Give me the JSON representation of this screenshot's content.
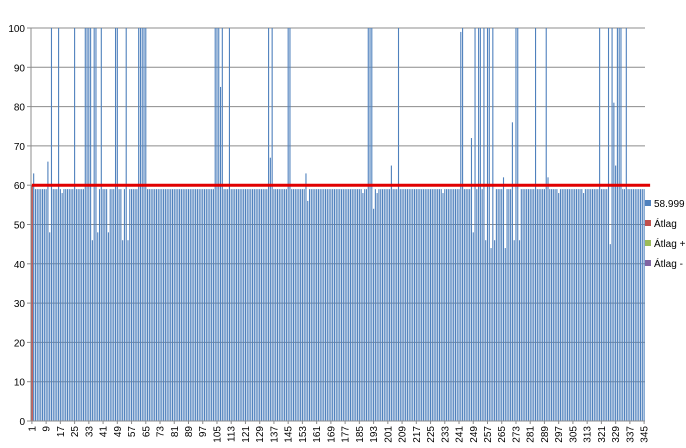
{
  "chart_data": {
    "type": "bar",
    "title": "",
    "xlabel": "",
    "ylabel": "",
    "bar_count": 345,
    "ylim": [
      0,
      100
    ],
    "y_ticks": [
      0,
      10,
      20,
      30,
      40,
      50,
      60,
      70,
      80,
      90,
      100
    ],
    "x_tick_labels": [
      "1",
      "9",
      "17",
      "25",
      "33",
      "41",
      "49",
      "57",
      "65",
      "73",
      "81",
      "89",
      "97",
      "105",
      "113",
      "121",
      "129",
      "137",
      "145",
      "153",
      "161",
      "169",
      "177",
      "185",
      "193",
      "201",
      "209",
      "217",
      "225",
      "233",
      "241",
      "249",
      "257",
      "265",
      "273",
      "281",
      "289",
      "297",
      "305",
      "313",
      "321",
      "329",
      "337",
      "345"
    ],
    "grid": true,
    "legend_position": "right",
    "baseline_value": 59,
    "bar_value_overrides": [
      [
        1,
        0
      ],
      [
        2,
        63
      ],
      [
        10,
        66
      ],
      [
        11,
        48
      ],
      [
        12,
        100
      ],
      [
        16,
        100
      ],
      [
        17,
        59
      ],
      [
        18,
        58
      ],
      [
        25,
        100
      ],
      [
        31,
        100
      ],
      [
        32,
        100
      ],
      [
        33,
        100
      ],
      [
        34,
        100
      ],
      [
        35,
        46
      ],
      [
        36,
        100
      ],
      [
        37,
        100
      ],
      [
        38,
        48
      ],
      [
        40,
        100
      ],
      [
        44,
        48
      ],
      [
        48,
        100
      ],
      [
        49,
        100
      ],
      [
        52,
        46
      ],
      [
        54,
        100
      ],
      [
        55,
        46
      ],
      [
        61,
        100
      ],
      [
        62,
        100
      ],
      [
        63,
        100
      ],
      [
        64,
        100
      ],
      [
        65,
        100
      ],
      [
        104,
        100
      ],
      [
        105,
        100
      ],
      [
        106,
        100
      ],
      [
        107,
        85
      ],
      [
        108,
        100
      ],
      [
        112,
        100
      ],
      [
        134,
        100
      ],
      [
        135,
        67
      ],
      [
        136,
        100
      ],
      [
        145,
        100
      ],
      [
        146,
        100
      ],
      [
        155,
        63
      ],
      [
        156,
        56
      ],
      [
        187,
        58
      ],
      [
        190,
        100
      ],
      [
        191,
        100
      ],
      [
        192,
        100
      ],
      [
        193,
        54
      ],
      [
        195,
        58
      ],
      [
        203,
        65
      ],
      [
        207,
        100
      ],
      [
        232,
        58
      ],
      [
        242,
        99
      ],
      [
        243,
        100
      ],
      [
        248,
        72
      ],
      [
        249,
        48
      ],
      [
        250,
        100
      ],
      [
        252,
        100
      ],
      [
        253,
        100
      ],
      [
        255,
        100
      ],
      [
        256,
        46
      ],
      [
        257,
        100
      ],
      [
        258,
        100
      ],
      [
        259,
        44
      ],
      [
        260,
        100
      ],
      [
        261,
        46
      ],
      [
        266,
        62
      ],
      [
        267,
        44
      ],
      [
        271,
        76
      ],
      [
        272,
        46
      ],
      [
        273,
        100
      ],
      [
        274,
        100
      ],
      [
        275,
        46
      ],
      [
        284,
        100
      ],
      [
        290,
        100
      ],
      [
        291,
        62
      ],
      [
        297,
        58
      ],
      [
        311,
        58
      ],
      [
        320,
        100
      ],
      [
        325,
        100
      ],
      [
        326,
        45
      ],
      [
        327,
        100
      ],
      [
        328,
        81
      ],
      [
        329,
        65
      ],
      [
        330,
        100
      ],
      [
        331,
        100
      ],
      [
        332,
        100
      ],
      [
        335,
        100
      ],
      [
        338,
        59
      ]
    ],
    "series": [
      {
        "name": "58.999",
        "color": "#4f81bd",
        "kind": "bar"
      },
      {
        "name": "Átlag",
        "color": "#c0504d",
        "kind": "line",
        "value": 60
      },
      {
        "name": "Átlag +",
        "color": "#9bbb59",
        "kind": "line"
      },
      {
        "name": "Átlag - ",
        "color": "#8064a2",
        "kind": "line"
      }
    ],
    "line_start_spike": {
      "bar": 1,
      "value": 60
    }
  }
}
